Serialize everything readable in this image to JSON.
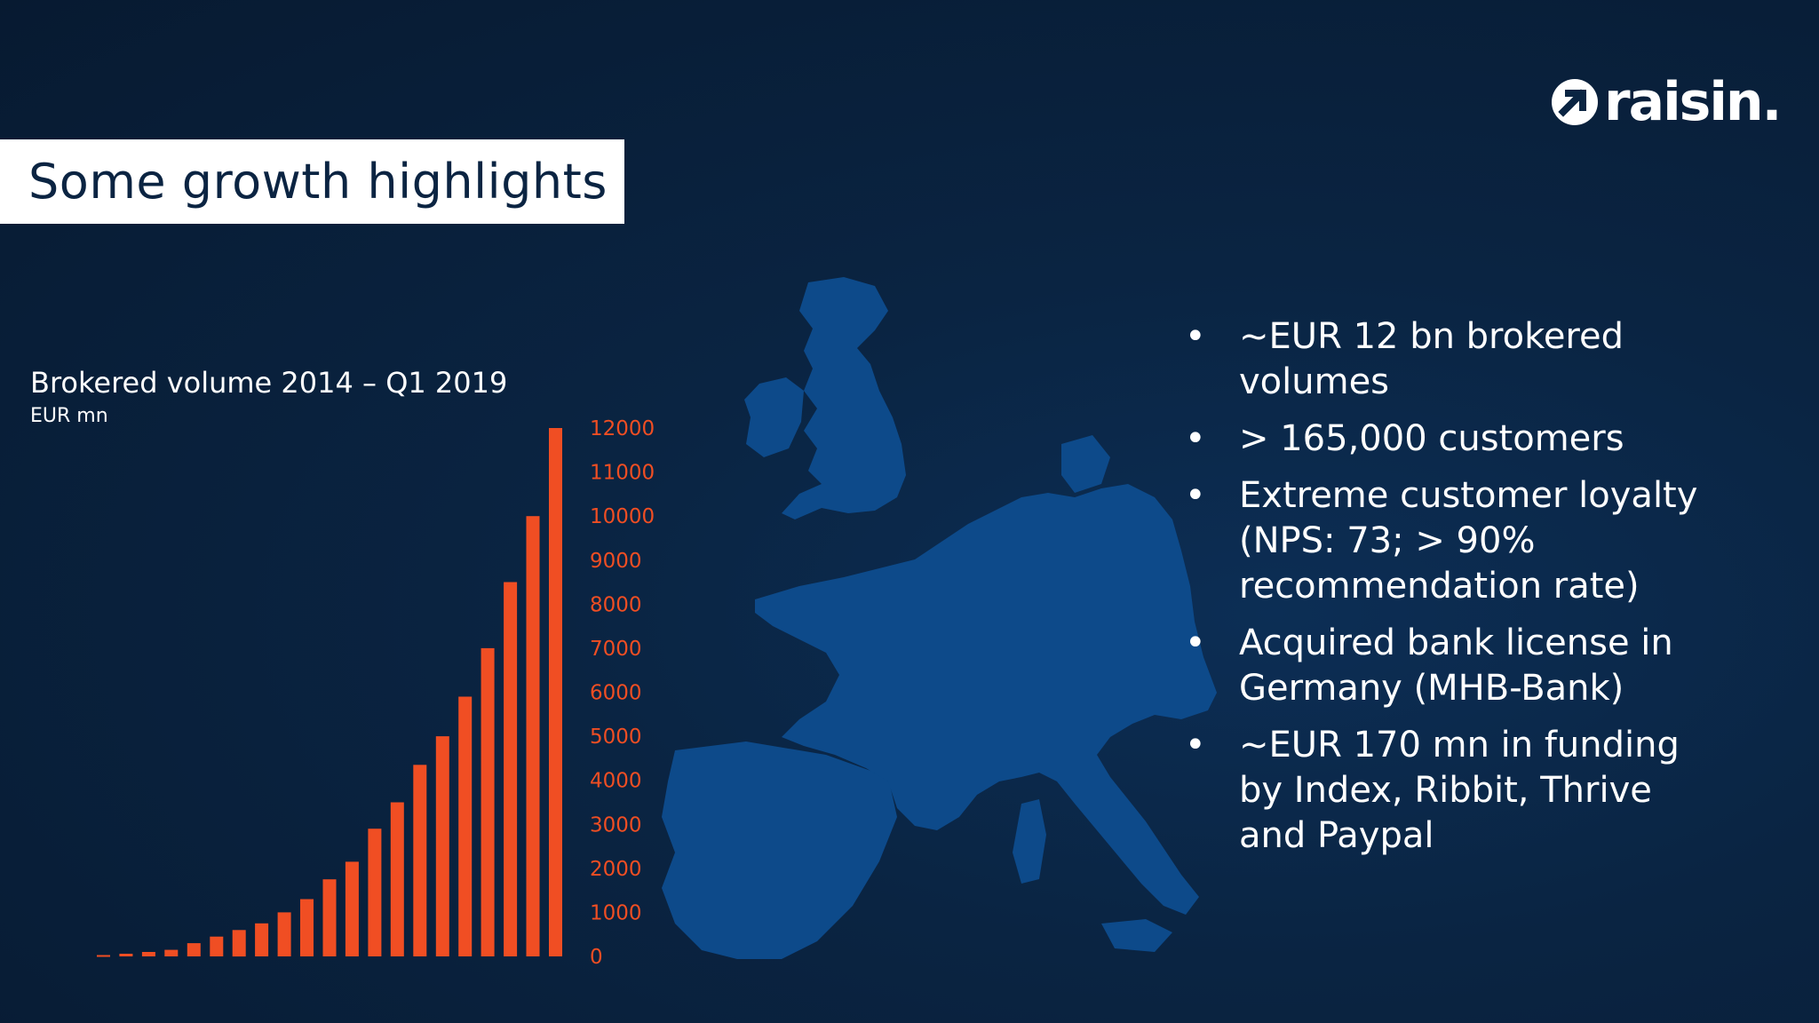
{
  "slide": {
    "title": "Some growth highlights",
    "logo_text": "raisin.",
    "logo_icon": "arrow-circle-icon"
  },
  "chart_title": "Brokered volume 2014 – Q1 2019",
  "chart_unit": "EUR mn",
  "chart_data": {
    "type": "bar",
    "title": "Brokered volume 2014 – Q1 2019",
    "ylabel": "EUR mn",
    "xlabel": "",
    "ylim": [
      0,
      12000
    ],
    "yticks": [
      0,
      1000,
      2000,
      3000,
      4000,
      5000,
      6000,
      7000,
      8000,
      9000,
      10000,
      11000,
      12000
    ],
    "y_axis_position": "right",
    "grid": false,
    "bar_color": "#f04e23",
    "tick_color": "#f04e23",
    "values": [
      30,
      60,
      100,
      150,
      300,
      450,
      600,
      750,
      1000,
      1300,
      1750,
      2150,
      2900,
      3500,
      4350,
      5000,
      5900,
      7000,
      8500,
      10000,
      12000
    ]
  },
  "bullets": [
    "~EUR 12 bn brokered volumes",
    "> 165,000 customers",
    "Extreme customer loyalty (NPS: 73; > 90% recommendation rate)",
    "Acquired bank license in Germany (MHB-Bank)",
    "~EUR 170 mn in funding by Index, Ribbit, Thrive and Paypal"
  ],
  "bullet_symbol": "•",
  "colors": {
    "background": "#0a2442",
    "map": "#0d4a8a",
    "accent": "#f04e23",
    "title_box": "#ffffff",
    "title_text": "#0b2442"
  }
}
